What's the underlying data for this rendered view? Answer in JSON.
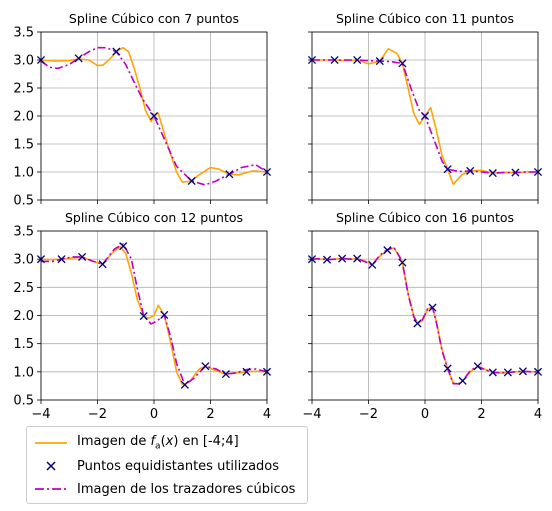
{
  "chart_data": [
    {
      "type": "line",
      "title": "Spline Cúbico con 7 puntos",
      "xlim": [
        -4,
        4
      ],
      "ylim": [
        0.5,
        3.5
      ],
      "xticks": [
        -4,
        -2,
        0,
        2,
        4
      ],
      "yticks": [
        0.5,
        1.0,
        1.5,
        2.0,
        2.5,
        3.0,
        3.5
      ],
      "show_xtick_labels": false,
      "show_ytick_labels": true,
      "grid": true,
      "points": {
        "x": [
          -4,
          -2.667,
          -1.333,
          0,
          1.333,
          2.667,
          4
        ],
        "y": [
          3.0,
          3.03,
          3.15,
          2.0,
          0.84,
          0.96,
          1.0
        ]
      },
      "function_curve": {
        "x": [
          -4,
          -3.5,
          -3,
          -2.667,
          -2.3,
          -2,
          -1.8,
          -1.5,
          -1.333,
          -1.1,
          -0.9,
          -0.7,
          -0.5,
          -0.3,
          -0.1,
          0,
          0.15,
          0.3,
          0.5,
          0.8,
          1.0,
          1.2,
          1.333,
          1.6,
          2.0,
          2.3,
          2.667,
          3.0,
          3.5,
          4
        ],
        "y": [
          3.0,
          2.98,
          2.99,
          3.02,
          3.0,
          2.9,
          2.91,
          3.05,
          3.15,
          3.22,
          3.15,
          2.85,
          2.5,
          2.1,
          1.9,
          2.0,
          2.05,
          1.8,
          1.45,
          1.0,
          0.82,
          0.83,
          0.85,
          0.95,
          1.08,
          1.05,
          0.96,
          0.95,
          1.02,
          1.0
        ]
      },
      "spline_curve": {
        "x": [
          -4,
          -3.7,
          -3.4,
          -3.0,
          -2.667,
          -2.3,
          -2.0,
          -1.7,
          -1.333,
          -1.0,
          -0.7,
          -0.4,
          0,
          0.4,
          0.8,
          1.333,
          1.8,
          2.2,
          2.667,
          3.1,
          3.6,
          4
        ],
        "y": [
          2.98,
          2.87,
          2.85,
          2.92,
          3.03,
          3.15,
          3.22,
          3.22,
          3.15,
          2.92,
          2.6,
          2.3,
          2.0,
          1.55,
          1.1,
          0.84,
          0.77,
          0.84,
          0.96,
          1.08,
          1.13,
          1.0
        ]
      }
    },
    {
      "type": "line",
      "title": "Spline Cúbico con 11 puntos",
      "xlim": [
        -4,
        4
      ],
      "ylim": [
        0.5,
        3.5
      ],
      "xticks": [
        -4,
        -2,
        0,
        2,
        4
      ],
      "yticks": [
        0.5,
        1.0,
        1.5,
        2.0,
        2.5,
        3.0,
        3.5
      ],
      "show_xtick_labels": false,
      "show_ytick_labels": false,
      "grid": true,
      "points": {
        "x": [
          -4,
          -3.2,
          -2.4,
          -1.6,
          -0.8,
          0,
          0.8,
          1.6,
          2.4,
          3.2,
          4
        ],
        "y": [
          3.0,
          3.0,
          3.0,
          2.98,
          2.94,
          2.0,
          1.05,
          1.02,
          0.98,
          0.99,
          1.0
        ]
      },
      "function_curve": {
        "x": [
          -4,
          -3.5,
          -3.2,
          -2.8,
          -2.4,
          -2.0,
          -1.6,
          -1.3,
          -1.0,
          -0.8,
          -0.6,
          -0.4,
          -0.2,
          0,
          0.2,
          0.4,
          0.6,
          0.8,
          1.0,
          1.3,
          1.6,
          2.0,
          2.4,
          2.8,
          3.2,
          3.6,
          4
        ],
        "y": [
          3.0,
          3.0,
          3.0,
          2.99,
          3.0,
          2.93,
          2.98,
          3.2,
          3.12,
          2.94,
          2.5,
          2.05,
          1.85,
          2.0,
          2.15,
          1.75,
          1.3,
          1.05,
          0.78,
          0.95,
          1.02,
          1.03,
          0.98,
          0.99,
          0.99,
          1.0,
          1.0
        ]
      },
      "spline_curve": {
        "x": [
          -4,
          -3.2,
          -2.4,
          -2.0,
          -1.6,
          -1.2,
          -0.8,
          -0.5,
          -0.2,
          0,
          0.3,
          0.6,
          0.8,
          1.2,
          1.6,
          2.0,
          2.4,
          2.8,
          3.2,
          3.6,
          4
        ],
        "y": [
          3.0,
          3.0,
          3.0,
          2.99,
          2.98,
          2.97,
          2.94,
          2.5,
          2.1,
          2.0,
          1.6,
          1.2,
          1.05,
          1.01,
          1.02,
          1.0,
          0.98,
          0.99,
          0.99,
          1.0,
          1.0
        ]
      }
    },
    {
      "type": "line",
      "title": "Spline Cúbico con 12 puntos",
      "xlim": [
        -4,
        4
      ],
      "ylim": [
        0.5,
        3.5
      ],
      "xticks": [
        -4,
        -2,
        0,
        2,
        4
      ],
      "yticks": [
        0.5,
        1.0,
        1.5,
        2.0,
        2.5,
        3.0,
        3.5
      ],
      "show_xtick_labels": true,
      "show_ytick_labels": true,
      "grid": true,
      "points": {
        "x": [
          -4,
          -3.273,
          -2.545,
          -1.818,
          -1.091,
          -0.364,
          0.364,
          1.091,
          1.818,
          2.545,
          3.273,
          4
        ],
        "y": [
          3.0,
          3.0,
          3.04,
          2.91,
          3.23,
          1.99,
          2.01,
          0.77,
          1.1,
          0.96,
          1.0,
          1.0
        ]
      },
      "function_curve": {
        "x": [
          -4,
          -3.6,
          -3.273,
          -2.9,
          -2.545,
          -2.2,
          -1.818,
          -1.5,
          -1.2,
          -1.0,
          -0.8,
          -0.6,
          -0.364,
          -0.2,
          0,
          0.15,
          0.364,
          0.6,
          0.8,
          1.0,
          1.091,
          1.3,
          1.6,
          1.818,
          2.2,
          2.545,
          2.9,
          3.273,
          3.6,
          4
        ],
        "y": [
          3.0,
          2.99,
          3.0,
          3.02,
          3.04,
          2.97,
          2.91,
          3.1,
          3.22,
          3.1,
          2.75,
          2.3,
          1.99,
          1.95,
          2.0,
          2.18,
          2.01,
          1.5,
          1.0,
          0.78,
          0.77,
          0.85,
          1.05,
          1.1,
          1.02,
          0.96,
          0.98,
          1.0,
          1.01,
          1.0
        ]
      },
      "spline_curve": {
        "x": [
          -4,
          -3.6,
          -3.273,
          -2.9,
          -2.545,
          -2.2,
          -1.818,
          -1.4,
          -1.091,
          -0.8,
          -0.6,
          -0.364,
          -0.1,
          0.1,
          0.364,
          0.6,
          0.8,
          1.091,
          1.4,
          1.818,
          2.2,
          2.545,
          2.9,
          3.273,
          3.6,
          4
        ],
        "y": [
          2.96,
          2.96,
          3.0,
          3.04,
          3.04,
          2.97,
          2.91,
          3.18,
          3.27,
          3.0,
          2.5,
          1.99,
          1.85,
          1.9,
          2.01,
          1.6,
          1.15,
          0.77,
          0.88,
          1.1,
          1.05,
          0.96,
          0.98,
          1.04,
          1.05,
          1.0
        ]
      }
    },
    {
      "type": "line",
      "title": "Spline Cúbico con 16 puntos",
      "xlim": [
        -4,
        4
      ],
      "ylim": [
        0.5,
        3.5
      ],
      "xticks": [
        -4,
        -2,
        0,
        2,
        4
      ],
      "yticks": [
        0.5,
        1.0,
        1.5,
        2.0,
        2.5,
        3.0,
        3.5
      ],
      "show_xtick_labels": true,
      "show_ytick_labels": false,
      "grid": true,
      "points": {
        "x": [
          -4,
          -3.467,
          -2.933,
          -2.4,
          -1.867,
          -1.333,
          -0.8,
          -0.267,
          0.267,
          0.8,
          1.333,
          1.867,
          2.4,
          2.933,
          3.467,
          4
        ],
        "y": [
          3.0,
          2.99,
          3.01,
          3.01,
          2.9,
          3.16,
          2.94,
          1.86,
          2.14,
          1.06,
          0.84,
          1.1,
          0.99,
          0.99,
          1.01,
          1.0
        ]
      },
      "function_curve": {
        "x": [
          -4,
          -3.7,
          -3.467,
          -3.2,
          -2.933,
          -2.6,
          -2.4,
          -2.1,
          -1.867,
          -1.6,
          -1.333,
          -1.1,
          -0.9,
          -0.8,
          -0.6,
          -0.4,
          -0.267,
          -0.1,
          0,
          0.1,
          0.267,
          0.4,
          0.6,
          0.8,
          1.0,
          1.2,
          1.333,
          1.6,
          1.867,
          2.1,
          2.4,
          2.7,
          2.933,
          3.2,
          3.467,
          3.8,
          4
        ],
        "y": [
          3.0,
          3.0,
          2.99,
          3.0,
          3.01,
          3.0,
          3.01,
          2.96,
          2.9,
          3.05,
          3.16,
          3.2,
          3.05,
          2.94,
          2.4,
          2.0,
          1.86,
          1.9,
          2.0,
          2.12,
          2.14,
          1.9,
          1.4,
          1.06,
          0.8,
          0.78,
          0.84,
          1.0,
          1.1,
          1.05,
          0.99,
          0.98,
          0.99,
          1.0,
          1.01,
          1.0,
          1.0
        ]
      },
      "spline_curve": {
        "x": [
          -4,
          -3.7,
          -3.467,
          -3.2,
          -2.933,
          -2.6,
          -2.4,
          -2.1,
          -1.867,
          -1.6,
          -1.333,
          -1.1,
          -0.9,
          -0.8,
          -0.6,
          -0.4,
          -0.267,
          -0.1,
          0,
          0.1,
          0.267,
          0.4,
          0.6,
          0.8,
          1.0,
          1.2,
          1.333,
          1.6,
          1.867,
          2.1,
          2.4,
          2.7,
          2.933,
          3.2,
          3.467,
          3.8,
          4
        ],
        "y": [
          3.0,
          3.01,
          2.99,
          3.0,
          3.01,
          3.0,
          3.01,
          2.95,
          2.9,
          3.07,
          3.17,
          3.21,
          3.04,
          2.94,
          2.38,
          1.98,
          1.86,
          1.92,
          2.02,
          2.13,
          2.14,
          1.88,
          1.38,
          1.06,
          0.79,
          0.79,
          0.84,
          1.02,
          1.1,
          1.04,
          0.99,
          0.98,
          0.99,
          1.0,
          1.01,
          1.0,
          1.0
        ]
      }
    }
  ],
  "legend": {
    "function_label": "Imagen de f_a(x) en [-4;4]",
    "points_label": "Puntos equidistantes utilizados",
    "spline_label": "Imagen de los trazadores cúbicos"
  },
  "colors": {
    "function": "#ffa500",
    "spline": "#bf00bf",
    "points": "#000080",
    "grid": "#b0b0b0"
  }
}
